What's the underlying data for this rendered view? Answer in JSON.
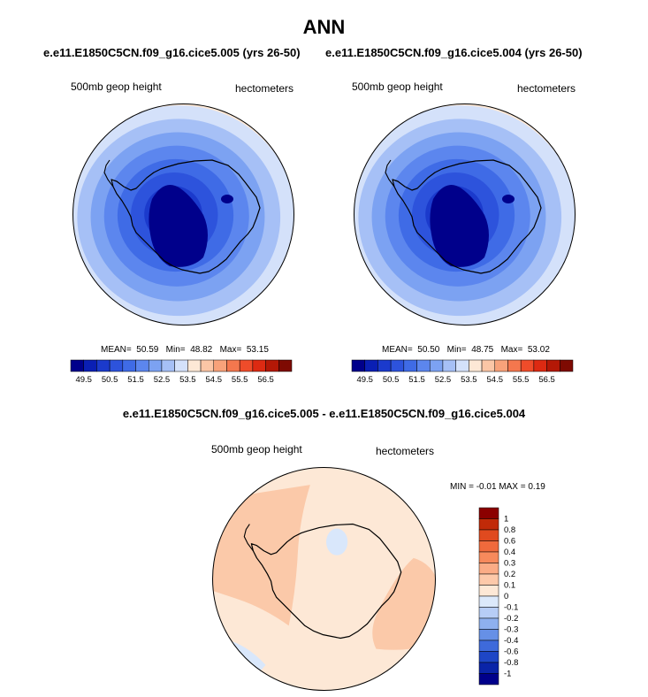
{
  "chart_data": [
    {
      "type": "contour-map",
      "projection": "south polar stereographic",
      "case": "e.e11.E1850C5CN.f09_g16.cice5.005 (yrs 26-50)",
      "variable": "500mb geop height",
      "units": "hectometers",
      "stats": {
        "mean": "50.59",
        "min": "48.82",
        "max": "53.15"
      },
      "colorbar_levels": [
        "49.5",
        "50.5",
        "51.5",
        "52.5",
        "53.5",
        "54.5",
        "55.5",
        "56.5"
      ],
      "colors": [
        "#00008b",
        "#0a1fb4",
        "#1b3acc",
        "#2d53dc",
        "#3f6be6",
        "#5c86ee",
        "#7ca2f2",
        "#a6c0f6",
        "#d4e1fa",
        "#fde8d6",
        "#fbc6a6",
        "#f8a27a",
        "#f4774e",
        "#ef4c2a",
        "#dd2a12",
        "#b41806",
        "#7e0a02"
      ],
      "field_levels": [
        1,
        2,
        3,
        4,
        5,
        6,
        7,
        8
      ]
    },
    {
      "type": "contour-map",
      "projection": "south polar stereographic",
      "case": "e.e11.E1850C5CN.f09_g16.cice5.004 (yrs 26-50)",
      "variable": "500mb geop height",
      "units": "hectometers",
      "stats": {
        "mean": "50.50",
        "min": "48.75",
        "max": "53.02"
      },
      "colorbar_levels": [
        "49.5",
        "50.5",
        "51.5",
        "52.5",
        "53.5",
        "54.5",
        "55.5",
        "56.5"
      ],
      "colors": [
        "#00008b",
        "#0a1fb4",
        "#1b3acc",
        "#2d53dc",
        "#3f6be6",
        "#5c86ee",
        "#7ca2f2",
        "#a6c0f6",
        "#d4e1fa",
        "#fde8d6",
        "#fbc6a6",
        "#f8a27a",
        "#f4774e",
        "#ef4c2a",
        "#dd2a12",
        "#b41806",
        "#7e0a02"
      ],
      "field_levels": [
        1,
        2,
        3,
        4,
        5,
        6,
        7,
        8
      ]
    },
    {
      "type": "contour-map-difference",
      "projection": "south polar stereographic",
      "title": "e.e11.E1850C5CN.f09_g16.cice5.005 - e.e11.E1850C5CN.f09_g16.cice5.004",
      "variable": "500mb geop height",
      "units": "hectometers",
      "stats_label": "MIN =  -0.01 MAX =   0.19",
      "colorbar_levels": [
        "1",
        "0.8",
        "0.6",
        "0.4",
        "0.3",
        "0.2",
        "0.1",
        "0",
        "-0.1",
        "-0.2",
        "-0.3",
        "-0.4",
        "-0.6",
        "-0.8",
        "-1"
      ],
      "colors": [
        "#8b0000",
        "#c12a08",
        "#e04a1f",
        "#f06a3c",
        "#f78a5c",
        "#fbac86",
        "#fdc9aa",
        "#fde8d6",
        "#dce9fb",
        "#b7cdf6",
        "#8eb0ef",
        "#6690e6",
        "#3e6adb",
        "#1e46c6",
        "#0a24a8",
        "#00008b"
      ],
      "field_colors": {
        "background": "#fde8d6",
        "positive": "#fbc9a9",
        "negative": "#d9e7fb"
      }
    }
  ],
  "header": {
    "title": "ANN",
    "subtitle_left": "e.e11.E1850C5CN.f09_g16.cice5.005 (yrs 26-50)",
    "subtitle_right": "e.e11.E1850C5CN.f09_g16.cice5.004 (yrs 26-50)"
  },
  "panels": [
    {
      "variable": "500mb geop height",
      "units": "hectometers",
      "mean_label": "MEAN=",
      "mean": "50.59",
      "min_label": "Min=",
      "min": "48.82",
      "max_label": "Max=",
      "max": "53.15"
    },
    {
      "variable": "500mb geop height",
      "units": "hectometers",
      "mean_label": "MEAN=",
      "mean": "50.50",
      "min_label": "Min=",
      "min": "48.75",
      "max_label": "Max=",
      "max": "53.02"
    }
  ],
  "diff": {
    "title": "e.e11.E1850C5CN.f09_g16.cice5.005 - e.e11.E1850C5CN.f09_g16.cice5.004",
    "variable": "500mb geop height",
    "units": "hectometers",
    "stats": "MIN =  -0.01 MAX =   0.19"
  }
}
